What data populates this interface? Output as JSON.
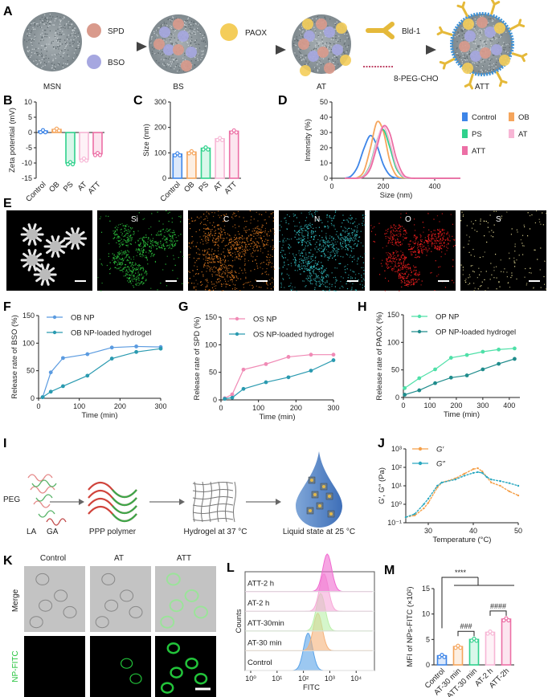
{
  "panel_labels": {
    "A": "A",
    "B": "B",
    "C": "C",
    "D": "D",
    "E": "E",
    "F": "F",
    "G": "G",
    "H": "H",
    "I": "I",
    "J": "J",
    "K": "K",
    "L": "L",
    "M": "M"
  },
  "scheme_a": {
    "msn": "MSN",
    "spd": "SPD",
    "bso": "BSO",
    "bs": "BS",
    "paox": "PAOX",
    "at": "AT",
    "bld1": "Bld-1",
    "peg": "8-PEG-CHO",
    "att": "ATT"
  },
  "mapping_e": {
    "elements": [
      "Si",
      "C",
      "N",
      "O",
      "S"
    ],
    "colors": [
      "#d9d9d9",
      "#2ecc40",
      "#e07b22",
      "#35c4c8",
      "#ff2020",
      "#f3e9a0"
    ]
  },
  "scheme_i": {
    "peg": "PEG",
    "la": "LA",
    "ga": "GA",
    "ppp": "PPP polymer",
    "hydrogel": "Hydrogel at 37 °C",
    "liquid": "Liquid state at 25 °C"
  },
  "imaging_k": {
    "columns": [
      "Control",
      "AT",
      "ATT"
    ],
    "rows": [
      "Merge",
      "NP-FITC"
    ],
    "fitc_color": "#22c33a"
  },
  "chart_data": [
    {
      "panel": "B",
      "type": "bar",
      "ylabel": "Zeta potential (mV)",
      "categories": [
        "Control",
        "OB",
        "PS",
        "AT",
        "ATT"
      ],
      "values": [
        0.5,
        1.0,
        -10.0,
        -8.8,
        -7.0
      ],
      "ylim": [
        -15,
        10
      ],
      "yticks": [
        10,
        5,
        0,
        -5,
        -10,
        -15
      ],
      "colors": [
        "#3d85e8",
        "#f5a55c",
        "#2fd18c",
        "#f7b6d5",
        "#ec6fa5"
      ]
    },
    {
      "panel": "C",
      "type": "bar",
      "ylabel": "Size (nm)",
      "categories": [
        "Control",
        "OB",
        "PS",
        "AT",
        "ATT"
      ],
      "values": [
        95,
        103,
        118,
        155,
        185
      ],
      "ylim": [
        0,
        300
      ],
      "yticks": [
        300,
        200,
        100,
        0
      ],
      "colors": [
        "#3d85e8",
        "#f5a55c",
        "#2fd18c",
        "#f7b6d5",
        "#ec6fa5"
      ]
    },
    {
      "panel": "D",
      "type": "line",
      "xlabel": "Size (nm)",
      "ylabel": "Intensity (%)",
      "xlim": [
        0,
        500
      ],
      "ylim": [
        0,
        50
      ],
      "xticks": [
        0,
        200,
        400
      ],
      "yticks": [
        50,
        40,
        30,
        20,
        10,
        0
      ],
      "legend": "top-right",
      "x": [
        50,
        75,
        100,
        125,
        150,
        175,
        200,
        225,
        250,
        275,
        300,
        350,
        500
      ],
      "series": [
        {
          "name": "Control",
          "color": "#3d85e8",
          "values": [
            0,
            1.5,
            7.5,
            19.6,
            28,
            21.6,
            9.1,
            2.1,
            0.2,
            0,
            0,
            0,
            0
          ]
        },
        {
          "name": "OB",
          "color": "#f5a55c",
          "values": [
            0,
            0,
            0.5,
            4.8,
            19.8,
            36.8,
            30.9,
            11.7,
            2.0,
            0.2,
            0,
            0,
            0
          ]
        },
        {
          "name": "PS",
          "color": "#2fd18c",
          "values": [
            0,
            0,
            0.1,
            1.8,
            9.4,
            24.5,
            31.9,
            20.6,
            6.7,
            1.1,
            0,
            0,
            0
          ]
        },
        {
          "name": "AT",
          "color": "#f7b6d5",
          "values": [
            0,
            0,
            0.1,
            1.5,
            8.5,
            24,
            34,
            24,
            8.5,
            1.5,
            0.1,
            0,
            0
          ]
        },
        {
          "name": "ATT",
          "color": "#ec6fa5",
          "values": [
            0,
            0,
            0,
            1.1,
            6.5,
            20.5,
            34.1,
            29.6,
            13.4,
            3.2,
            0.3,
            0,
            0
          ]
        }
      ]
    },
    {
      "panel": "F",
      "type": "line",
      "xlabel": "Time (min)",
      "ylabel": "Release rate of BSO (%)",
      "xlim": [
        0,
        300
      ],
      "ylim": [
        0,
        150
      ],
      "xticks": [
        0,
        100,
        200,
        300
      ],
      "yticks": [
        150,
        100,
        50,
        0
      ],
      "legend": "top-left",
      "x": [
        10,
        30,
        60,
        120,
        180,
        240,
        300
      ],
      "series": [
        {
          "name": "OB NP",
          "color": "#5b9be0",
          "values": [
            2,
            47,
            73,
            80,
            92,
            94,
            93
          ]
        },
        {
          "name": "OB NP-loaded hydrogel",
          "color": "#2a9ab0",
          "values": [
            2,
            12,
            22,
            41,
            72,
            84,
            90
          ]
        }
      ]
    },
    {
      "panel": "G",
      "type": "line",
      "xlabel": "Time (min)",
      "ylabel": "Release rate of SPD (%)",
      "xlim": [
        0,
        300
      ],
      "ylim": [
        0,
        150
      ],
      "xticks": [
        0,
        100,
        200,
        300
      ],
      "yticks": [
        150,
        100,
        50,
        0
      ],
      "legend": "top-left",
      "x": [
        10,
        30,
        60,
        120,
        180,
        240,
        300
      ],
      "series": [
        {
          "name": "OS NP",
          "color": "#f08ab5",
          "values": [
            3,
            10,
            55,
            65,
            78,
            82,
            82
          ]
        },
        {
          "name": "OS NP-loaded hydrogel",
          "color": "#2a9ab0",
          "values": [
            2,
            4,
            20,
            32,
            41,
            53,
            72
          ]
        }
      ]
    },
    {
      "panel": "H",
      "type": "line",
      "xlabel": "Time (min)",
      "ylabel": "Release rate of PAOX (%)",
      "xlim": [
        0,
        440
      ],
      "ylim": [
        0,
        150
      ],
      "xticks": [
        0,
        100,
        200,
        300,
        400
      ],
      "yticks": [
        150,
        100,
        50,
        0
      ],
      "legend": "top-left",
      "x": [
        5,
        60,
        120,
        180,
        240,
        300,
        360,
        420
      ],
      "series": [
        {
          "name": "OP NP",
          "color": "#4fe0a8",
          "values": [
            17,
            35,
            51,
            72,
            77,
            83,
            87,
            89
          ]
        },
        {
          "name": "OP NP-loaded hydrogel",
          "color": "#1f8c8c",
          "values": [
            5,
            13,
            26,
            36,
            40,
            51,
            61,
            70
          ]
        }
      ]
    },
    {
      "panel": "J",
      "type": "line",
      "xlabel": "Temperature (°C)",
      "ylabel": "G′, G″ (Pa)",
      "xlim": [
        25,
        50
      ],
      "ylim": [
        0.1,
        1000
      ],
      "yscale": "log",
      "xticks": [
        30,
        40,
        50
      ],
      "yticks": [
        1000,
        100,
        10,
        1,
        0.1
      ],
      "ytick_labels": [
        "10³",
        "10²",
        "10¹",
        "10⁰",
        "10⁻¹"
      ],
      "legend": "top-left",
      "x": [
        25,
        27,
        29,
        30,
        32,
        33,
        36,
        38,
        40,
        41,
        42,
        43,
        44,
        46,
        48,
        50
      ],
      "series": [
        {
          "name": "G′",
          "color": "#f5a04a",
          "values": [
            0.2,
            0.25,
            0.6,
            1.2,
            8,
            15,
            25,
            45,
            80,
            90,
            60,
            30,
            15,
            10,
            5,
            3
          ]
        },
        {
          "name": "G″",
          "color": "#2aa8c0",
          "values": [
            0.2,
            0.3,
            1.0,
            2,
            10,
            15,
            22,
            35,
            50,
            55,
            50,
            30,
            22,
            18,
            14,
            10
          ]
        }
      ]
    },
    {
      "panel": "L",
      "type": "area",
      "xlabel": "FITC",
      "ylabel": "Counts",
      "xscale": "log",
      "xlim": [
        1,
        40000
      ],
      "xticks": [
        1,
        10,
        100,
        1000,
        10000
      ],
      "xtick_labels": [
        "10⁰",
        "10¹",
        "10²",
        "10³",
        "10⁴"
      ],
      "series": [
        {
          "name": "Control",
          "color": "#5aa3e8",
          "peak": 150
        },
        {
          "name": "AT-30 min",
          "color": "#f5b27a",
          "peak": 350
        },
        {
          "name": "ATT-30min",
          "color": "#b9f0a8",
          "peak": 450
        },
        {
          "name": "AT-2 h",
          "color": "#f7a8d8",
          "peak": 600
        },
        {
          "name": "ATT-2 h",
          "color": "#f06ad0",
          "peak": 800
        }
      ]
    },
    {
      "panel": "M",
      "type": "bar",
      "ylabel": "MFI of NPs-FITC (×10²)",
      "categories": [
        "Control",
        "AT-30 min",
        "ATT-30 min",
        "AT-2 h",
        "ATT-2h"
      ],
      "values": [
        1.8,
        3.6,
        5.0,
        6.4,
        9.0
      ],
      "ylim": [
        0,
        15
      ],
      "yticks": [
        15,
        10,
        5,
        0
      ],
      "colors": [
        "#3d85e8",
        "#f5a55c",
        "#2fd18c",
        "#f7b6d5",
        "#ec6fa5"
      ],
      "annotations": [
        "****",
        "###",
        "####"
      ]
    }
  ]
}
